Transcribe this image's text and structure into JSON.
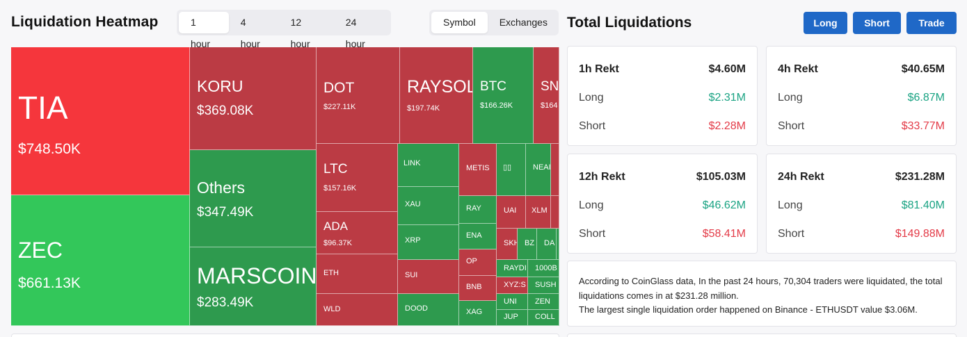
{
  "heatmap": {
    "title": "Liquidation Heatmap",
    "time_options": [
      "1 hour",
      "4 hour",
      "12 hour",
      "24 hour"
    ],
    "view_options": [
      "Symbol",
      "Exchanges"
    ],
    "tiles": [
      {
        "symbol": "TIA",
        "value": "$748.50K"
      },
      {
        "symbol": "ZEC",
        "value": "$661.13K"
      },
      {
        "symbol": "KORU",
        "value": "$369.08K"
      },
      {
        "symbol": "Others",
        "value": "$347.49K"
      },
      {
        "symbol": "MARSCOIN",
        "value": "$283.49K"
      },
      {
        "symbol": "DOT",
        "value": "$227.11K"
      },
      {
        "symbol": "RAYSOL",
        "value": "$197.74K"
      },
      {
        "symbol": "BTC",
        "value": "$166.26K"
      },
      {
        "symbol": "SN",
        "value": "$164"
      },
      {
        "symbol": "LTC",
        "value": "$157.16K"
      },
      {
        "symbol": "ADA",
        "value": "$96.37K"
      },
      {
        "symbol": "ETH",
        "value": ""
      },
      {
        "symbol": "WLD",
        "value": ""
      },
      {
        "symbol": "LINK",
        "value": ""
      },
      {
        "symbol": "XAU",
        "value": ""
      },
      {
        "symbol": "XRP",
        "value": ""
      },
      {
        "symbol": "SUI",
        "value": ""
      },
      {
        "symbol": "DOOD",
        "value": ""
      },
      {
        "symbol": "METIS",
        "value": ""
      },
      {
        "symbol": "RAY",
        "value": ""
      },
      {
        "symbol": "ENA",
        "value": ""
      },
      {
        "symbol": "OP",
        "value": ""
      },
      {
        "symbol": "BNB",
        "value": ""
      },
      {
        "symbol": "XAG",
        "value": ""
      },
      {
        "symbol": "▯▯",
        "value": ""
      },
      {
        "symbol": "NEAI",
        "value": ""
      },
      {
        "symbol": "",
        "value": ""
      },
      {
        "symbol": "UAI",
        "value": ""
      },
      {
        "symbol": "XLM",
        "value": ""
      },
      {
        "symbol": "",
        "value": ""
      },
      {
        "symbol": "SKH",
        "value": ""
      },
      {
        "symbol": "BZ",
        "value": ""
      },
      {
        "symbol": "DA",
        "value": ""
      },
      {
        "symbol": "",
        "value": ""
      },
      {
        "symbol": "RAYDI",
        "value": ""
      },
      {
        "symbol": "1000B",
        "value": ""
      },
      {
        "symbol": "XYZ:S",
        "value": ""
      },
      {
        "symbol": "SUSH",
        "value": ""
      },
      {
        "symbol": "UNI",
        "value": ""
      },
      {
        "symbol": "ZEN",
        "value": ""
      },
      {
        "symbol": "JUP",
        "value": ""
      },
      {
        "symbol": "COLL",
        "value": ""
      }
    ]
  },
  "total": {
    "title": "Total Liquidations",
    "buttons": {
      "long": "Long",
      "short": "Short",
      "trade": "Trade"
    },
    "cards": [
      {
        "title": "1h Rekt",
        "total": "$4.60M",
        "long_label": "Long",
        "long": "$2.31M",
        "short_label": "Short",
        "short": "$2.28M"
      },
      {
        "title": "4h Rekt",
        "total": "$40.65M",
        "long_label": "Long",
        "long": "$6.87M",
        "short_label": "Short",
        "short": "$33.77M"
      },
      {
        "title": "12h Rekt",
        "total": "$105.03M",
        "long_label": "Long",
        "long": "$46.62M",
        "short_label": "Short",
        "short": "$58.41M"
      },
      {
        "title": "24h Rekt",
        "total": "$231.28M",
        "long_label": "Long",
        "long": "$81.40M",
        "short_label": "Short",
        "short": "$149.88M"
      }
    ],
    "summary_line1": "According to CoinGlass data, In the past 24 hours, 70,304 traders were liquidated, the total liquidations comes in at $231.28 million.",
    "summary_line2": "The largest single liquidation order happened on Binance - ETHUSDT value $3.06M."
  },
  "colors": {
    "long_green": "#1aa383",
    "short_red": "#e33a47",
    "accent_blue": "#1f68c7",
    "tile_green": "#2e9a4e",
    "tile_red": "#bb3b44"
  }
}
